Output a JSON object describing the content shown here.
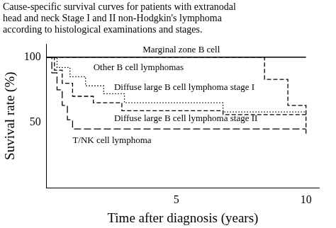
{
  "chart_data": {
    "type": "line",
    "title": "Cause-specific survival curves for patients with extranodal\nhead and neck Stage I and II non-Hodgkin's lymphoma\naccording to histological examinations and stages.",
    "x_label": "Time after diagnosis (years)",
    "y_label": "Suvival rate (%)",
    "xlim": [
      0,
      10.5
    ],
    "xticks": [
      5,
      10
    ],
    "ylim": [
      0,
      110
    ],
    "yticks": [
      50,
      100
    ],
    "grid": false,
    "series": [
      {
        "name": "Marginal zone B cell",
        "color": "#000000",
        "line_style": "solid",
        "x": [
          0,
          10
        ],
        "values": [
          100,
          100
        ]
      },
      {
        "name": "Other B cell lymphomas",
        "color": "#000000",
        "line_style": "dashed",
        "x": [
          0,
          8.4,
          9.3,
          10
        ],
        "values": [
          100,
          83,
          63,
          40
        ]
      },
      {
        "name": "Diffuse large B cell lymphoma stage I",
        "color": "#000000",
        "line_style": "dotted",
        "x": [
          0,
          0.4,
          0.9,
          1.5,
          2.2,
          3.0,
          6.8,
          10
        ],
        "values": [
          100,
          92,
          85,
          78,
          72,
          65,
          58,
          58
        ]
      },
      {
        "name": "Diffuse large B cell lymphoma stage II",
        "color": "#000000",
        "line_style": "dashed",
        "x": [
          0,
          0.3,
          0.6,
          1.0,
          1.8,
          2.9,
          6.8,
          10
        ],
        "values": [
          100,
          90,
          80,
          70,
          65,
          59,
          56,
          56
        ]
      },
      {
        "name": "T/NK cell lymphoma",
        "color": "#000000",
        "line_style": "longdash",
        "x": [
          0,
          0.2,
          0.4,
          0.6,
          0.8,
          1.0,
          10
        ],
        "values": [
          100,
          88,
          75,
          63,
          52,
          45,
          45
        ]
      }
    ]
  }
}
